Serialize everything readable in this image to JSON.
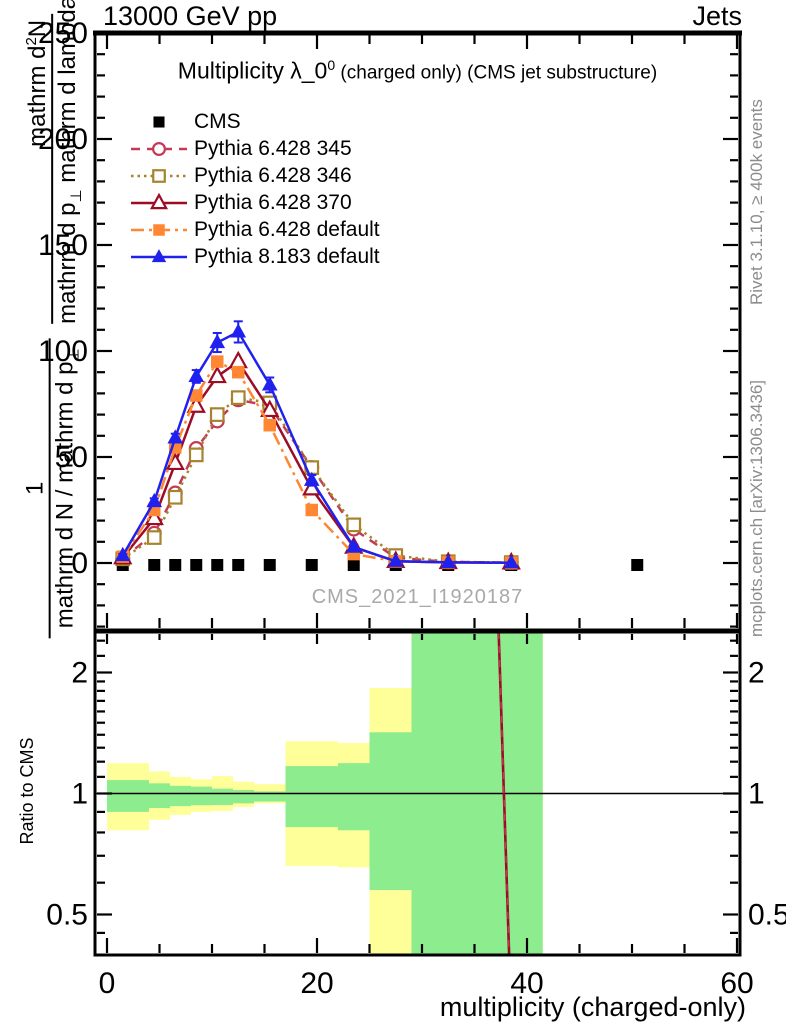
{
  "page": {
    "top_left_title": "13000 GeV pp",
    "top_right_title": "Jets",
    "plot_title": {
      "main": "Multiplicity λ_0",
      "sup": "0",
      "rest": " (charged only) (CMS jet substructure)"
    },
    "watermark": "CMS_2021_I1920187",
    "right_label_top": "Rivet 3.1.10, ≥ 400k events",
    "right_label_bottom": "mcplots.cern.ch [arXiv:1306.3436]",
    "ratio_ylabel": "Ratio to CMS",
    "xlabel": "multiplicity (charged-only)",
    "ylabel": {
      "frac1_num": "1",
      "frac1_den_main": "mathrm d N / mathrm d p",
      "frac1_den_sub": "⊥",
      "frac2_num_main": "mathrm d",
      "frac2_num_sup": "2",
      "frac2_num_tail": "N",
      "frac2_den_main": "mathrm d p",
      "frac2_den_sub": "⊥",
      "frac2_den_tail": " mathrm d lambda"
    }
  },
  "chart_data": {
    "type": "line",
    "title": "Multiplicity λ_0^0 (charged only) (CMS jet substructure)",
    "xlabel": "multiplicity (charged-only)",
    "ylabel": "1 / (mathrm d N / mathrm d p⊥) · mathrm d²N / (mathrm d p⊥ mathrm d lambda)",
    "xlim": [
      0,
      60
    ],
    "xticks": [
      0,
      20,
      40,
      60
    ],
    "x_minor_step": 5,
    "main_panel": {
      "ylim": [
        -32,
        250
      ],
      "yticks": [
        0,
        50,
        100,
        150,
        200,
        250
      ],
      "y_minor_step": 10
    },
    "x": [
      1.5,
      4.5,
      6.5,
      8.5,
      10.5,
      12.5,
      15.5,
      19.5,
      23.5,
      27.5,
      32.5,
      38.5
    ],
    "series": [
      {
        "name": "CMS",
        "color": "#000000",
        "marker": "square",
        "filled": true,
        "line": "none",
        "x": [
          1.5,
          4.5,
          6.5,
          8.5,
          10.5,
          12.5,
          15.5,
          19.5,
          23.5,
          27.5,
          32.5,
          38.5,
          50.5
        ],
        "y": [
          0,
          0,
          0,
          0,
          0,
          0,
          0,
          0,
          0,
          0,
          0,
          0,
          0
        ]
      },
      {
        "name": "Pythia 6.428 345",
        "color": "#c43a55",
        "marker": "circle",
        "filled": false,
        "line": "dashed",
        "y": [
          2,
          14,
          33,
          54,
          67,
          77,
          74,
          45,
          16,
          2.5,
          0.5,
          0.2
        ]
      },
      {
        "name": "Pythia 6.428 346",
        "color": "#a5842d",
        "marker": "square",
        "filled": false,
        "line": "dotted",
        "y": [
          2,
          12,
          31,
          51,
          70,
          78,
          75.5,
          45,
          18,
          3.5,
          0.6,
          0.2
        ]
      },
      {
        "name": "Pythia 6.428 370",
        "color": "#9d0c25",
        "marker": "triangle",
        "filled": false,
        "line": "solid",
        "y": [
          2.5,
          21,
          47,
          74,
          88,
          95,
          72,
          35,
          7.5,
          0.8,
          0.3,
          0.1
        ]
      },
      {
        "name": "Pythia 6.428 default",
        "color": "#ff8632",
        "marker": "square",
        "filled": true,
        "line": "dashdot",
        "y": [
          3,
          25,
          54.5,
          79,
          95,
          90,
          65,
          25,
          4.2,
          0.8,
          0.3,
          0.1
        ]
      },
      {
        "name": "Pythia 8.183 default",
        "color": "#2121ee",
        "marker": "triangle",
        "filled": true,
        "line": "solid",
        "y": [
          3.5,
          29,
          59,
          88,
          104,
          109,
          84,
          39,
          7.5,
          0.8,
          0.3,
          0.1
        ],
        "yerr": [
          0.8,
          1.5,
          2,
          3,
          4.5,
          5,
          3.5,
          2.5,
          1.2,
          0.4,
          0.2,
          0.1
        ]
      }
    ],
    "ratio_panel": {
      "ylog": true,
      "ylim": [
        0.395,
        2.52
      ],
      "yticks": [
        0.5,
        1,
        2
      ],
      "ytick_labels": [
        "0.5",
        "1",
        "2"
      ],
      "minor_ticks": [
        0.4,
        0.45,
        0.6,
        0.7,
        0.8,
        0.9,
        1.1,
        1.2,
        1.3,
        1.4,
        1.5,
        1.6,
        1.7,
        1.8,
        1.9,
        2.2,
        2.4
      ],
      "reference_line": 1,
      "band_colors": {
        "yellow": "#ffff99",
        "green": "#8dec8d"
      },
      "bands": [
        {
          "x0": 0,
          "x1": 4,
          "yellow": [
            0.81,
            1.19
          ],
          "green": [
            0.9,
            1.08
          ]
        },
        {
          "x0": 4,
          "x1": 6,
          "yellow": [
            0.86,
            1.135
          ],
          "green": [
            0.92,
            1.06
          ]
        },
        {
          "x0": 6,
          "x1": 8,
          "yellow": [
            0.885,
            1.1
          ],
          "green": [
            0.93,
            1.045
          ]
        },
        {
          "x0": 8,
          "x1": 10,
          "yellow": [
            0.9,
            1.085
          ],
          "green": [
            0.935,
            1.04
          ]
        },
        {
          "x0": 10,
          "x1": 12,
          "yellow": [
            0.905,
            1.105
          ],
          "green": [
            0.936,
            1.028
          ]
        },
        {
          "x0": 12,
          "x1": 14,
          "yellow": [
            0.925,
            1.07
          ],
          "green": [
            0.945,
            1.02
          ]
        },
        {
          "x0": 14,
          "x1": 17,
          "yellow": [
            0.945,
            1.055
          ],
          "green": [
            0.955,
            1.012
          ]
        },
        {
          "x0": 17,
          "x1": 22,
          "yellow": [
            0.66,
            1.35
          ],
          "green": [
            0.825,
            1.17
          ]
        },
        {
          "x0": 22,
          "x1": 25,
          "yellow": [
            0.655,
            1.335
          ],
          "green": [
            0.81,
            1.19
          ]
        },
        {
          "x0": 25,
          "x1": 29,
          "yellow": [
            0.4,
            1.83
          ],
          "green": [
            0.575,
            1.42
          ]
        },
        {
          "x0": 29,
          "x1": 41.5,
          "yellow": [
            0.36,
            2.6
          ],
          "green": [
            0.36,
            2.6
          ]
        }
      ],
      "diverging_line": {
        "x_top": 37.3,
        "x_bottom": 38.3,
        "color": "#9d0c25",
        "overlay_dash_color": "#c43a55"
      }
    }
  }
}
